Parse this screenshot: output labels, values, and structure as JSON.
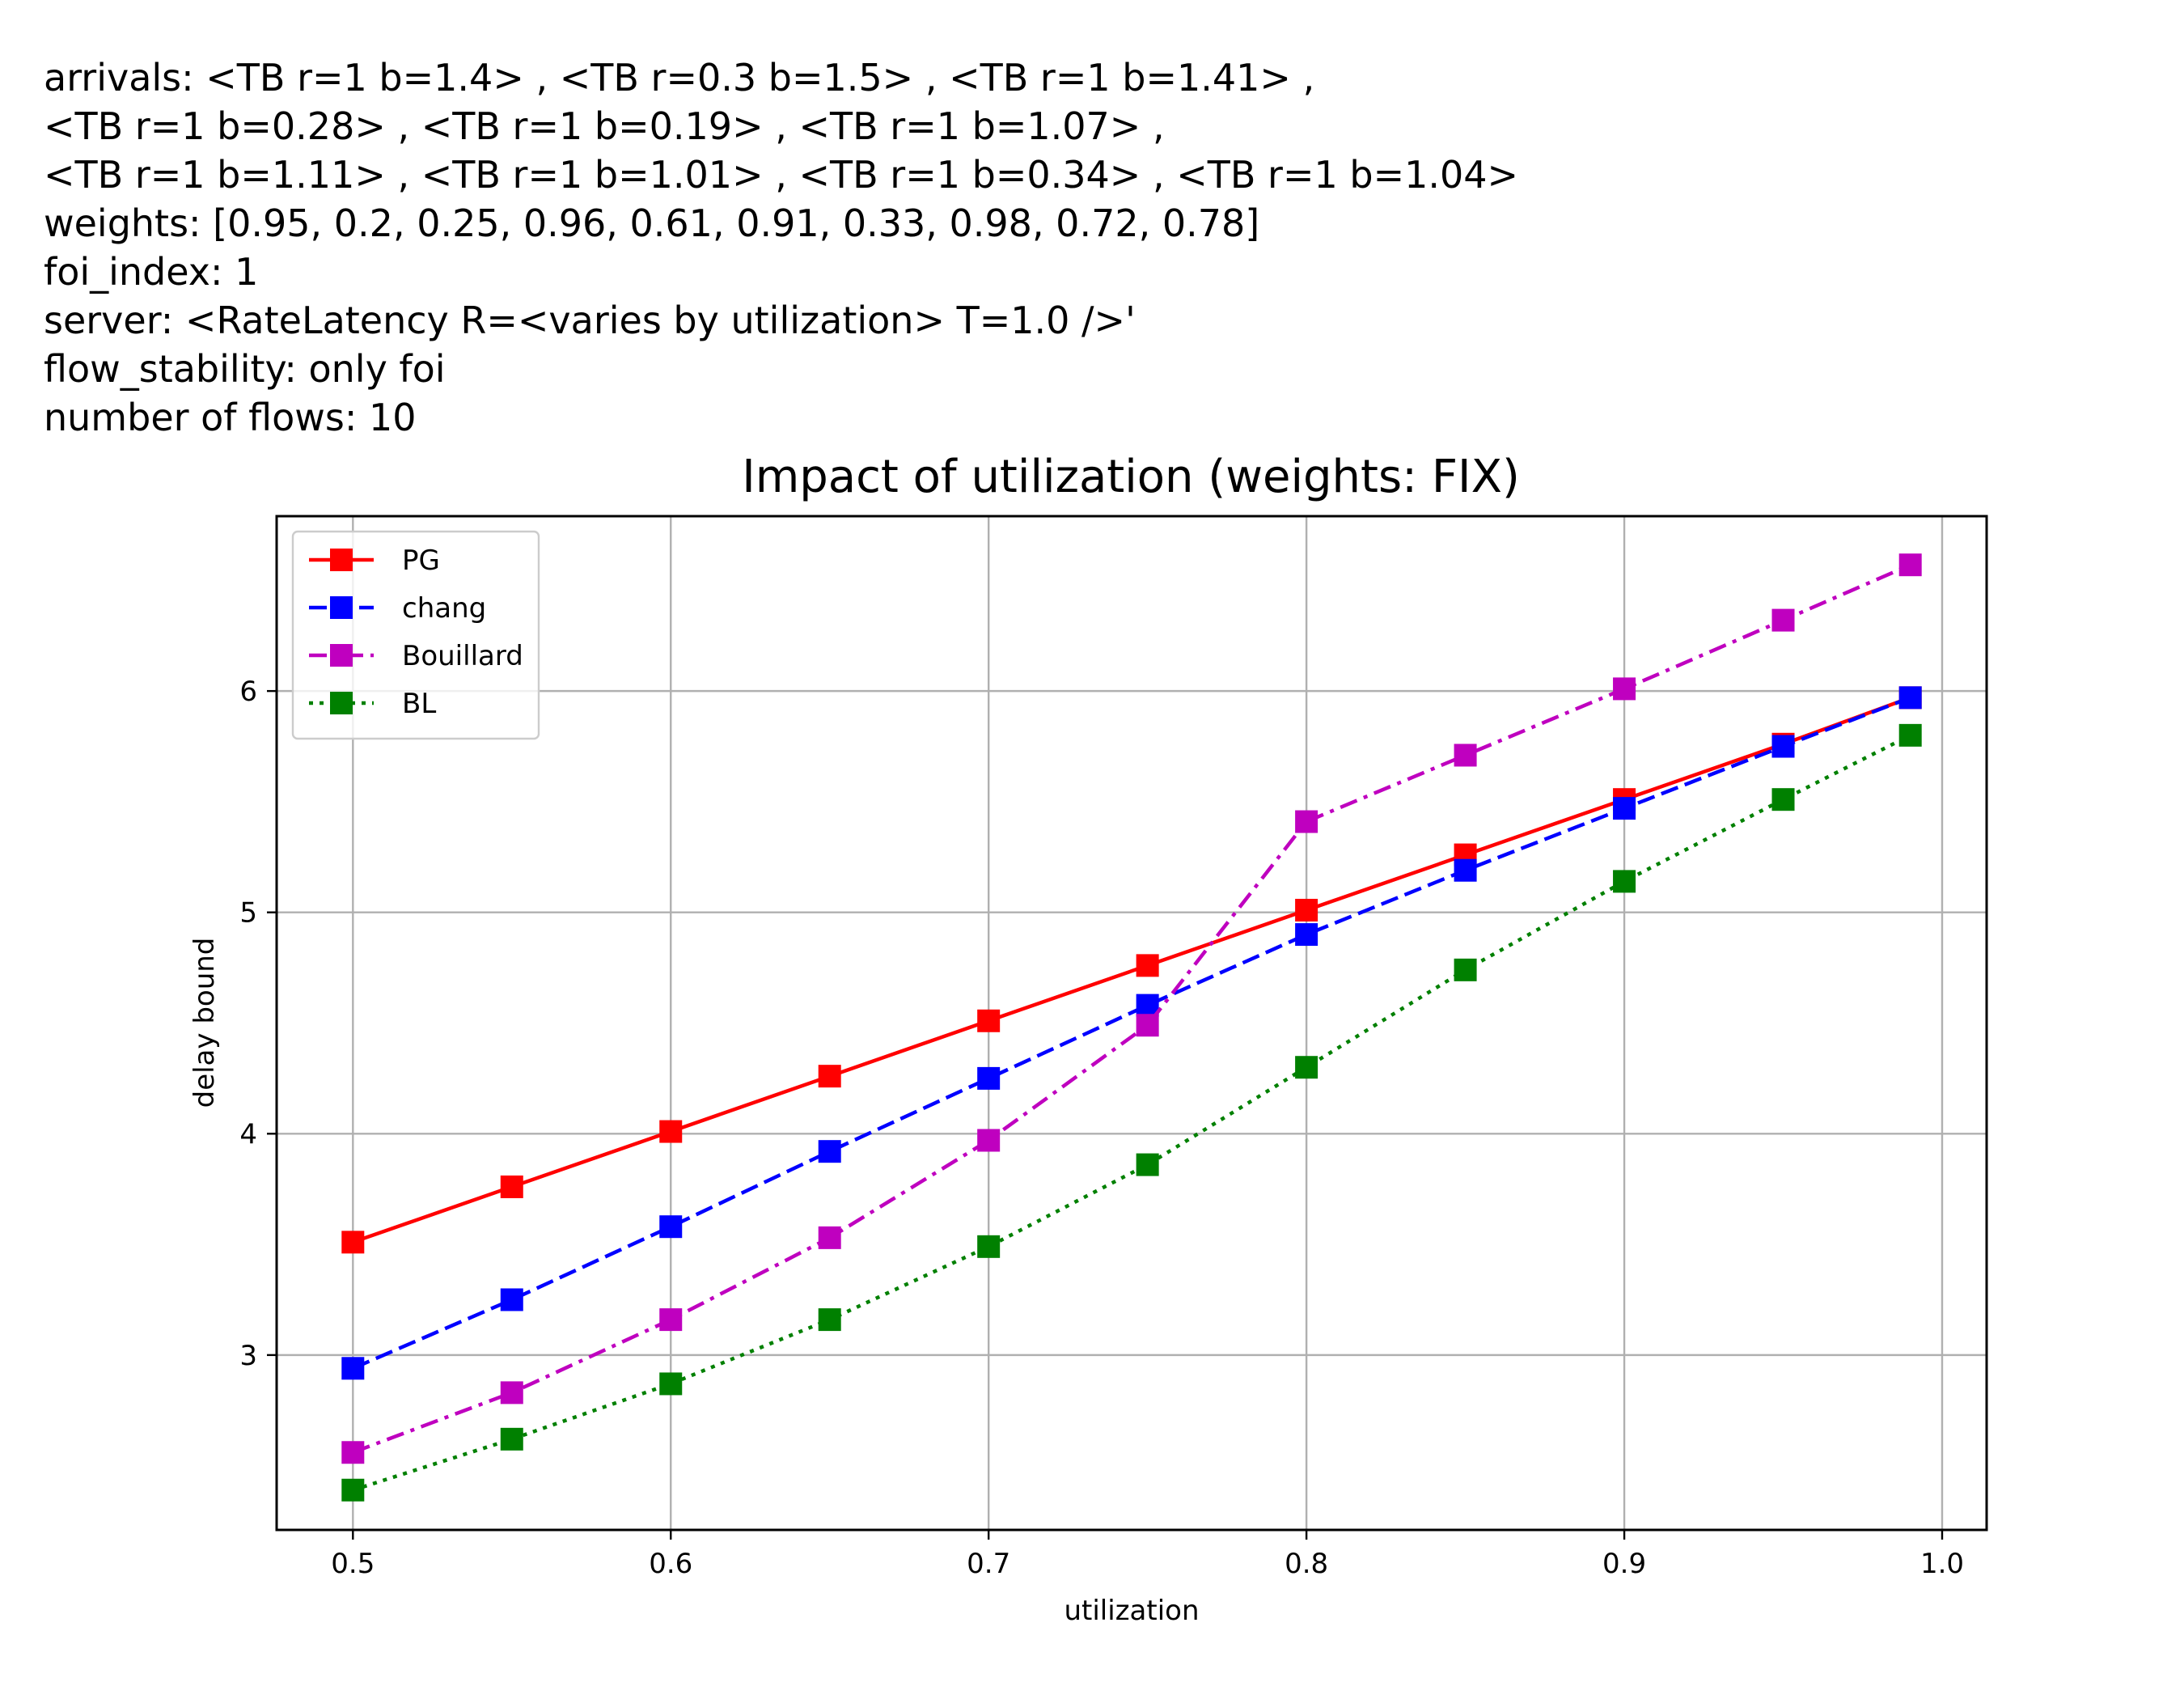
{
  "header_lines": [
    "arrivals: <TB r=1 b=1.4> , <TB r=0.3 b=1.5> , <TB r=1 b=1.41> ,",
    "<TB r=1 b=0.28> , <TB r=1 b=0.19> , <TB r=1 b=1.07> ,",
    "<TB r=1 b=1.11> , <TB r=1 b=1.01> , <TB r=1 b=0.34> , <TB r=1 b=1.04>",
    "weights: [0.95, 0.2, 0.25, 0.96, 0.61, 0.91, 0.33, 0.98, 0.72, 0.78]",
    "foi_index: 1",
    "server: <RateLatency R=<varies by utilization> T=1.0 />'",
    "flow_stability: only foi",
    "number of flows: 10"
  ],
  "chart_data": {
    "type": "line",
    "title": "Impact of utilization (weights: FIX)",
    "xlabel": "utilization",
    "ylabel": "delay bound",
    "xlim": [
      0.476,
      1.014
    ],
    "ylim": [
      2.21,
      6.79
    ],
    "xticks": [
      0.5,
      0.6,
      0.7,
      0.8,
      0.9,
      1.0
    ],
    "xtick_labels": [
      "0.5",
      "0.6",
      "0.7",
      "0.8",
      "0.9",
      "1.0"
    ],
    "yticks": [
      3,
      4,
      5,
      6
    ],
    "ytick_labels": [
      "3",
      "4",
      "5",
      "6"
    ],
    "grid": true,
    "legend_position": "top-left",
    "x": [
      0.5,
      0.55,
      0.6,
      0.65,
      0.7,
      0.75,
      0.8,
      0.85,
      0.9,
      0.95,
      0.99
    ],
    "series": [
      {
        "name": "PG",
        "color": "#ff0000",
        "dash": "solid",
        "values": [
          3.51,
          3.76,
          4.01,
          4.26,
          4.51,
          4.76,
          5.01,
          5.26,
          5.51,
          5.76,
          5.97
        ]
      },
      {
        "name": "chang",
        "color": "#0000ff",
        "dash": "dashed",
        "values": [
          2.94,
          3.25,
          3.58,
          3.92,
          4.25,
          4.58,
          4.9,
          5.19,
          5.47,
          5.75,
          5.97
        ]
      },
      {
        "name": "Bouillard",
        "color": "#bf00bf",
        "dash": "dashdot",
        "values": [
          2.56,
          2.83,
          3.16,
          3.53,
          3.97,
          4.49,
          5.41,
          5.71,
          6.01,
          6.32,
          6.57
        ]
      },
      {
        "name": "BL",
        "color": "#008000",
        "dash": "dotted",
        "values": [
          2.39,
          2.62,
          2.87,
          3.16,
          3.49,
          3.86,
          4.3,
          4.74,
          5.14,
          5.51,
          5.8
        ]
      }
    ]
  }
}
